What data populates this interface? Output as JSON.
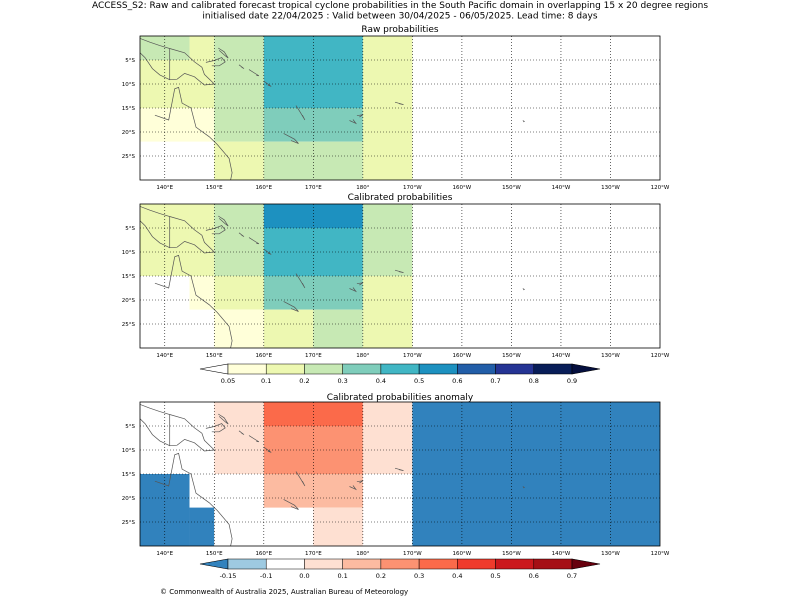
{
  "header": {
    "line1": "ACCESS_S2: Raw and calibrated forecast tropical cyclone probabilities in the South Pacific domain in overlapping 15 x 20 degree regions",
    "line2": "initialised date 22/04/2025 :  Valid between 30/04/2025 - 06/05/2025. Lead time: 8 days"
  },
  "map_labels": {
    "lon_ticks": [
      "140°E",
      "150°E",
      "160°E",
      "170°E",
      "180°",
      "170°W",
      "160°W",
      "150°W",
      "140°W",
      "130°W",
      "120°W"
    ],
    "lat_ticks": [
      "5°S",
      "10°S",
      "15°S",
      "20°S",
      "25°S"
    ]
  },
  "panels": [
    {
      "id": "raw",
      "title": "Raw probabilities",
      "cells": [
        {
          "lon": [
            135,
            145
          ],
          "lat": [
            0,
            -5
          ],
          "value": 0.25
        },
        {
          "lon": [
            135,
            145
          ],
          "lat": [
            -5,
            -15
          ],
          "value": 0.15
        },
        {
          "lon": [
            135,
            150
          ],
          "lat": [
            -15,
            -22
          ],
          "value": 0.05
        },
        {
          "lon": [
            145,
            150
          ],
          "lat": [
            0,
            -15
          ],
          "value": 0.15
        },
        {
          "lon": [
            150,
            160
          ],
          "lat": [
            0,
            -22
          ],
          "value": 0.25
        },
        {
          "lon": [
            150,
            160
          ],
          "lat": [
            -22,
            -30
          ],
          "value": 0.15
        },
        {
          "lon": [
            160,
            180
          ],
          "lat": [
            0,
            -15
          ],
          "value": 0.45
        },
        {
          "lon": [
            160,
            180
          ],
          "lat": [
            -15,
            -22
          ],
          "value": 0.35
        },
        {
          "lon": [
            160,
            180
          ],
          "lat": [
            -22,
            -30
          ],
          "value": 0.25
        },
        {
          "lon": [
            180,
            190
          ],
          "lat": [
            0,
            -30
          ],
          "value": 0.15
        }
      ]
    },
    {
      "id": "calibrated",
      "title": "Calibrated probabilities",
      "cells": [
        {
          "lon": [
            135,
            145
          ],
          "lat": [
            0,
            -15
          ],
          "value": 0.15
        },
        {
          "lon": [
            145,
            150
          ],
          "lat": [
            0,
            -15
          ],
          "value": 0.15
        },
        {
          "lon": [
            145,
            150
          ],
          "lat": [
            -15,
            -22
          ],
          "value": 0.05
        },
        {
          "lon": [
            150,
            160
          ],
          "lat": [
            0,
            -15
          ],
          "value": 0.25
        },
        {
          "lon": [
            150,
            160
          ],
          "lat": [
            -15,
            -22
          ],
          "value": 0.15
        },
        {
          "lon": [
            150,
            160
          ],
          "lat": [
            -22,
            -30
          ],
          "value": 0.05
        },
        {
          "lon": [
            160,
            180
          ],
          "lat": [
            0,
            -5
          ],
          "value": 0.55
        },
        {
          "lon": [
            160,
            180
          ],
          "lat": [
            -5,
            -15
          ],
          "value": 0.45
        },
        {
          "lon": [
            160,
            180
          ],
          "lat": [
            -15,
            -22
          ],
          "value": 0.35
        },
        {
          "lon": [
            160,
            170
          ],
          "lat": [
            -22,
            -30
          ],
          "value": 0.15
        },
        {
          "lon": [
            170,
            180
          ],
          "lat": [
            -22,
            -30
          ],
          "value": 0.25
        },
        {
          "lon": [
            180,
            190
          ],
          "lat": [
            0,
            -15
          ],
          "value": 0.25
        },
        {
          "lon": [
            180,
            190
          ],
          "lat": [
            -15,
            -30
          ],
          "value": 0.15
        }
      ]
    },
    {
      "id": "anomaly",
      "title": "Calibrated probabilities anomaly",
      "cells": [
        {
          "lon": [
            135,
            145
          ],
          "lat": [
            0,
            -15
          ],
          "value": 0.0
        },
        {
          "lon": [
            145,
            150
          ],
          "lat": [
            0,
            -2
          ],
          "value": 0.0
        },
        {
          "lon": [
            145,
            150
          ],
          "lat": [
            -2,
            -15
          ],
          "value": 0.0
        },
        {
          "lon": [
            150,
            160
          ],
          "lat": [
            0,
            -15
          ],
          "value": 0.05
        },
        {
          "lon": [
            160,
            180
          ],
          "lat": [
            0,
            -5
          ],
          "value": 0.35
        },
        {
          "lon": [
            160,
            180
          ],
          "lat": [
            -5,
            -15
          ],
          "value": 0.25
        },
        {
          "lon": [
            160,
            180
          ],
          "lat": [
            -15,
            -22
          ],
          "value": 0.15
        },
        {
          "lon": [
            180,
            190
          ],
          "lat": [
            0,
            -15
          ],
          "value": 0.05
        },
        {
          "lon": [
            135,
            145
          ],
          "lat": [
            -15,
            -30
          ],
          "value": -0.2
        },
        {
          "lon": [
            145,
            150
          ],
          "lat": [
            -15,
            -22
          ],
          "value": -0.1
        },
        {
          "lon": [
            145,
            150
          ],
          "lat": [
            -22,
            -30
          ],
          "value": -0.2
        },
        {
          "lon": [
            150,
            160
          ],
          "lat": [
            -22,
            -30
          ],
          "value": -0.1
        },
        {
          "lon": [
            170,
            180
          ],
          "lat": [
            -22,
            -30
          ],
          "value": 0.05
        },
        {
          "lon": [
            190,
            240
          ],
          "lat": [
            0,
            -30
          ],
          "value": -0.2
        }
      ]
    }
  ],
  "colorbars": {
    "probability": {
      "ticks": [
        "0.05",
        "0.1",
        "0.2",
        "0.3",
        "0.4",
        "0.5",
        "0.6",
        "0.7",
        "0.8",
        "0.9"
      ],
      "colors": [
        "#ffffd9",
        "#edf8b1",
        "#c7e9b4",
        "#7fcdbb",
        "#41b6c4",
        "#1d91c0",
        "#225ea8",
        "#253494",
        "#081d58"
      ],
      "under_color": "#ffffff",
      "over_color": "#050f3e"
    },
    "anomaly": {
      "ticks": [
        "-0.15",
        "-0.1",
        "0.0",
        "0.1",
        "0.2",
        "0.3",
        "0.4",
        "0.5",
        "0.6",
        "0.7"
      ],
      "colors": [
        "#9ecae1",
        "#ffffff",
        "#fee0d2",
        "#fcbba1",
        "#fc9272",
        "#fb6a4a",
        "#ef3b2c",
        "#cb181d",
        "#a50f15"
      ],
      "under_color": "#3182bd",
      "over_color": "#67000d"
    }
  },
  "footer": "© Commonwealth of Australia 2025, Australian Bureau of Meteorology"
}
